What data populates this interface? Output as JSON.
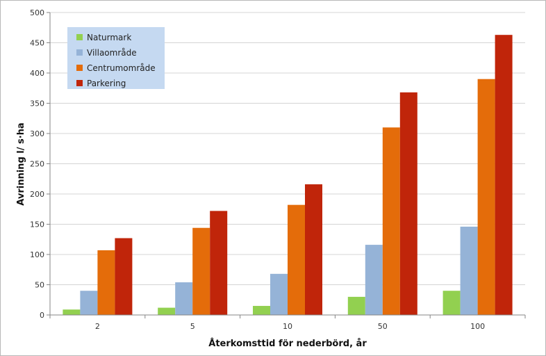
{
  "chart_data": {
    "type": "bar",
    "title": "",
    "xlabel": "Återkomsttid för nederbörd, år",
    "ylabel": "Avrinning l/ s·ha",
    "categories": [
      "2",
      "5",
      "10",
      "50",
      "100"
    ],
    "ylim": [
      0,
      500
    ],
    "yticks": [
      0,
      50,
      100,
      150,
      200,
      250,
      300,
      350,
      400,
      450,
      500
    ],
    "grid": true,
    "legend_position": "top-left",
    "series": [
      {
        "name": "Naturmark",
        "color": "#92d050",
        "values": [
          9,
          12,
          15,
          30,
          40
        ]
      },
      {
        "name": "Villaområde",
        "color": "#95b3d7",
        "values": [
          40,
          54,
          68,
          116,
          146
        ]
      },
      {
        "name": "Centrumområde",
        "color": "#e46c0a",
        "values": [
          107,
          144,
          182,
          310,
          390
        ]
      },
      {
        "name": "Parkering",
        "color": "#c0250a",
        "values": [
          127,
          172,
          216,
          368,
          463
        ]
      }
    ]
  },
  "legend_bg": "#c5d9f1"
}
